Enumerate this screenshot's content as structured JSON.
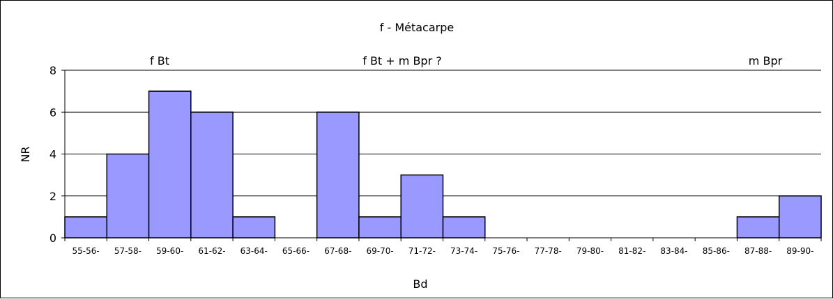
{
  "chart_data": {
    "type": "bar",
    "title": "f - Métacarpe",
    "xlabel": "Bd",
    "ylabel": "NR",
    "ylim": [
      0,
      8
    ],
    "yticks": [
      "0",
      "2",
      "4",
      "6",
      "8"
    ],
    "grid": "horizontal",
    "categories": [
      "55-56-",
      "57-58-",
      "59-60-",
      "61-62-",
      "63-64-",
      "65-66-",
      "67-68-",
      "69-70-",
      "71-72-",
      "73-74-",
      "75-76-",
      "77-78-",
      "79-80-",
      "81-82-",
      "83-84-",
      "85-86-",
      "87-88-",
      "89-90-"
    ],
    "values": [
      1,
      4,
      7,
      6,
      1,
      0,
      6,
      1,
      3,
      1,
      0,
      0,
      0,
      0,
      0,
      0,
      1,
      2
    ],
    "annotations": [
      "f Bt",
      "f Bt + m Bpr ?",
      "m Bpr"
    ],
    "colors": {
      "bar_fill": "#9999ff",
      "bar_stroke": "#000000"
    }
  }
}
